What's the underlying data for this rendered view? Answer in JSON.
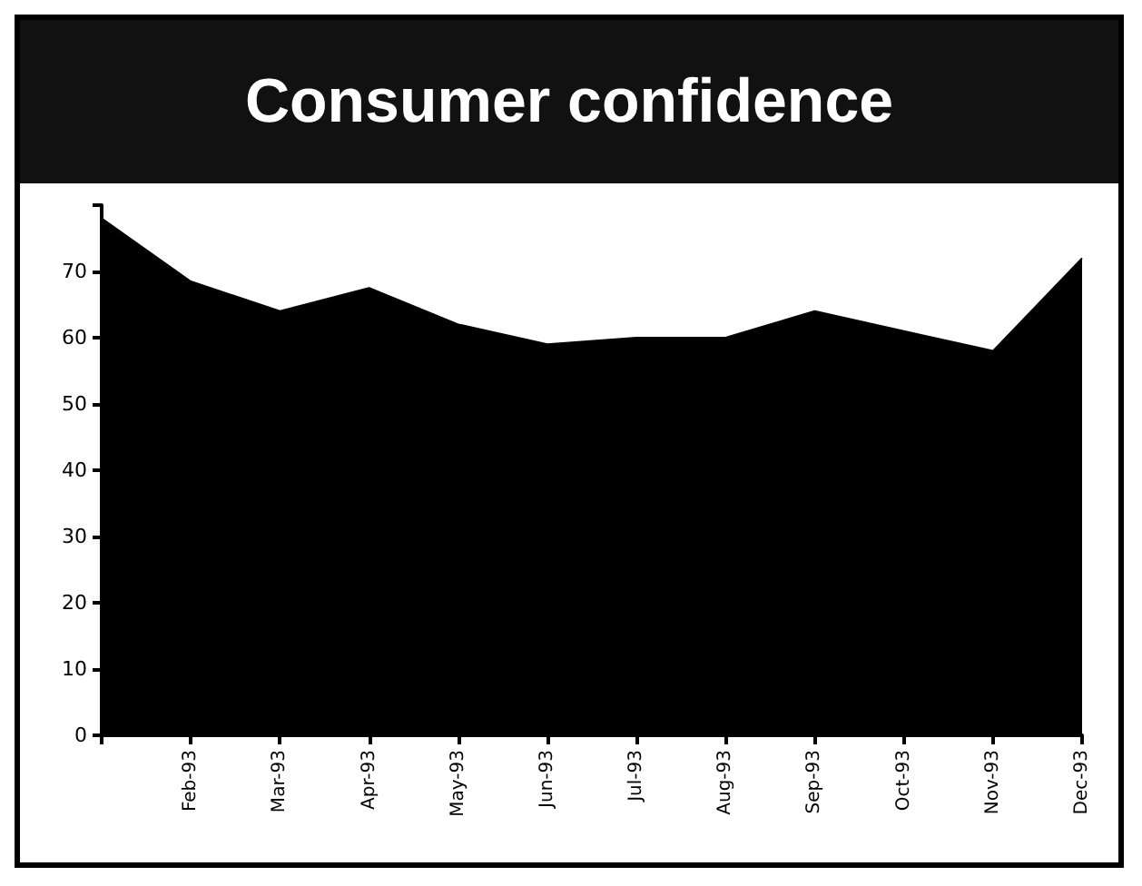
{
  "chart_data": {
    "type": "area",
    "title": "Consumer confidence",
    "categories": [
      null,
      "Feb-93",
      "Mar-93",
      "Apr-93",
      "May-93",
      "Jun-93",
      "Jul-93",
      "Aug-93",
      "Sep-93",
      "Oct-93",
      "Nov-93",
      "Dec-93"
    ],
    "values": [
      78,
      68.5,
      64,
      67.5,
      62,
      59,
      60,
      60,
      64,
      61,
      58,
      72
    ],
    "color": "#000000",
    "ylim": [
      0,
      80
    ],
    "yticks": [
      0,
      10,
      20,
      30,
      40,
      50,
      60,
      70,
      {
        "value": 80,
        "label": null
      }
    ],
    "grid": false
  }
}
